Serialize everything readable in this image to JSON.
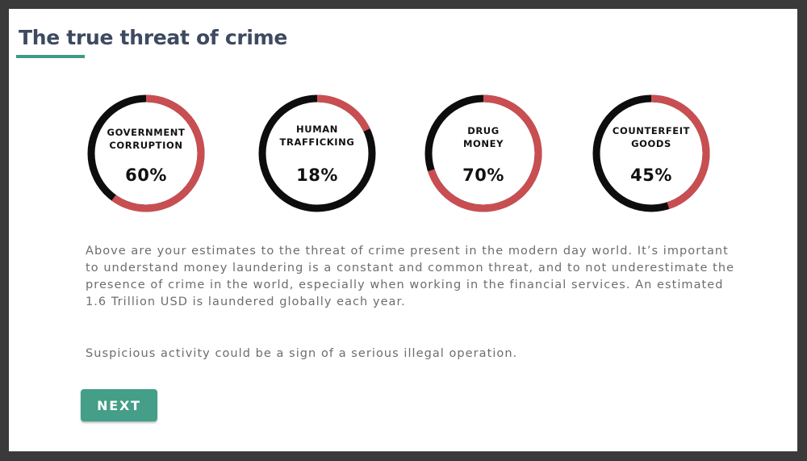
{
  "page": {
    "title": "The true threat of crime",
    "accent_color": "#3e9a86",
    "title_color": "#3d4a60"
  },
  "gauges": [
    {
      "label_lines": [
        "GOVERNMENT",
        "CORRUPTION"
      ],
      "value_text": "60%",
      "percent": 60
    },
    {
      "label_lines": [
        "HUMAN",
        "TRAFFICKING"
      ],
      "value_text": "18%",
      "percent": 18
    },
    {
      "label_lines": [
        "DRUG",
        "MONEY"
      ],
      "value_text": "70%",
      "percent": 70
    },
    {
      "label_lines": [
        "COUNTERFEIT",
        "GOODS"
      ],
      "value_text": "45%",
      "percent": 45
    }
  ],
  "gauge_colors": {
    "filled": "#c94e51",
    "track": "#0d0d0d"
  },
  "body": {
    "paragraph_1": "Above are your estimates to the threat of crime present in the modern day world. It’s important to understand money laundering is a constant and common threat, and to not underestimate the presence of crime in the world, especially when working in the financial services. An estimated 1.6 Trillion USD is laundered globally each year.",
    "paragraph_2": "Suspicious activity could be a sign of a serious illegal operation."
  },
  "buttons": {
    "next_label": "NEXT",
    "next_color": "#449e88"
  }
}
